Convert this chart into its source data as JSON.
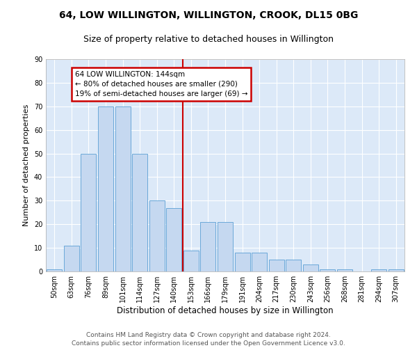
{
  "title": "64, LOW WILLINGTON, WILLINGTON, CROOK, DL15 0BG",
  "subtitle": "Size of property relative to detached houses in Willington",
  "xlabel": "Distribution of detached houses by size in Willington",
  "ylabel": "Number of detached properties",
  "bar_labels": [
    "50sqm",
    "63sqm",
    "76sqm",
    "89sqm",
    "101sqm",
    "114sqm",
    "127sqm",
    "140sqm",
    "153sqm",
    "166sqm",
    "179sqm",
    "191sqm",
    "204sqm",
    "217sqm",
    "230sqm",
    "243sqm",
    "256sqm",
    "268sqm",
    "281sqm",
    "294sqm",
    "307sqm"
  ],
  "bar_values": [
    1,
    11,
    50,
    70,
    70,
    50,
    30,
    27,
    9,
    21,
    21,
    8,
    8,
    5,
    5,
    3,
    1,
    1,
    0,
    1,
    1
  ],
  "bar_color": "#c5d8f0",
  "bar_edge_color": "#5a9fd4",
  "ylim": [
    0,
    90
  ],
  "yticks": [
    0,
    10,
    20,
    30,
    40,
    50,
    60,
    70,
    80,
    90
  ],
  "vline_x_index": 7.5,
  "annotation_text": "64 LOW WILLINGTON: 144sqm\n← 80% of detached houses are smaller (290)\n19% of semi-detached houses are larger (69) →",
  "footer_line1": "Contains HM Land Registry data © Crown copyright and database right 2024.",
  "footer_line2": "Contains public sector information licensed under the Open Government Licence v3.0.",
  "bg_color": "#dce9f8",
  "grid_color": "#ffffff",
  "annotation_box_edge": "#cc0000",
  "vline_color": "#cc0000",
  "title_fontsize": 10,
  "subtitle_fontsize": 9,
  "ylabel_fontsize": 8,
  "xlabel_fontsize": 8.5,
  "tick_fontsize": 7,
  "footer_fontsize": 6.5,
  "annotation_fontsize": 7.5
}
